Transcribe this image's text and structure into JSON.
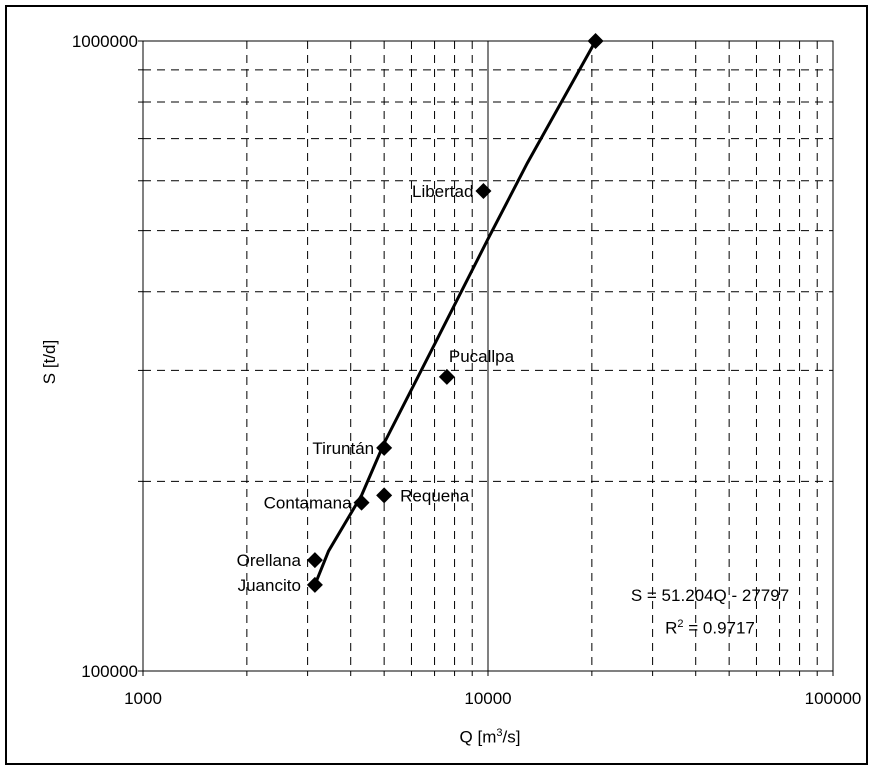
{
  "chart_data": {
    "type": "scatter",
    "xlabel_main": "Q [m",
    "xlabel_sup": "3",
    "xlabel_tail": "/s]",
    "ylabel": "S [t/d]",
    "x_scale": "log",
    "y_scale": "log",
    "xlim": [
      1000,
      100000
    ],
    "ylim": [
      100000,
      1000000
    ],
    "x_ticks": [
      "1000",
      "10000",
      "100000"
    ],
    "y_ticks": [
      "100000",
      "1000000"
    ],
    "grid": true,
    "points": [
      {
        "label": "Juancito",
        "x": 3150,
        "y": 137000
      },
      {
        "label": "Orellana",
        "x": 3150,
        "y": 150000
      },
      {
        "label": "Contamana",
        "x": 4300,
        "y": 185000
      },
      {
        "label": "Requena",
        "x": 5000,
        "y": 190000
      },
      {
        "label": "Tiruntán",
        "x": 5000,
        "y": 226000
      },
      {
        "label": "Pucallpa",
        "x": 7600,
        "y": 293000
      },
      {
        "label": "Libertad",
        "x": 9700,
        "y": 578000
      },
      {
        "label": "",
        "x": 20500,
        "y": 1000000
      }
    ],
    "trendline": {
      "x": [
        3150,
        3450,
        4300,
        5000,
        7000,
        10000,
        13000,
        20500
      ],
      "y": [
        137000,
        155000,
        190000,
        230000,
        330000,
        485000,
        640000,
        1000000
      ],
      "equation": "S = 51.204Q - 27797",
      "r2_prefix": "R",
      "r2_sup": "2",
      "r2_tail": " = 0.9717"
    }
  }
}
